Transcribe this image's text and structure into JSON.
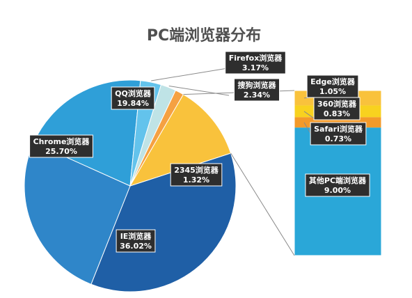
{
  "chart_data": {
    "type": "pie",
    "title": "PC端浏览器分布",
    "slices": [
      {
        "label": "IE浏览器",
        "percent_text": "36.02%",
        "value": 36.02,
        "color": "#1f5fa6"
      },
      {
        "label": "Chrome浏览器",
        "percent_text": "25.70%",
        "value": 25.7,
        "color": "#2f86c9"
      },
      {
        "label": "QQ浏览器",
        "percent_text": "19.84%",
        "value": 19.84,
        "color": "#2f9fd8"
      },
      {
        "label": "Firefox浏览器",
        "percent_text": "3.17%",
        "value": 3.17,
        "color": "#63c3ec"
      },
      {
        "label": "搜狗浏览器",
        "percent_text": "2.34%",
        "value": 2.34,
        "color": "#bfe3e6"
      },
      {
        "label": "2345浏览器",
        "percent_text": "1.32%",
        "value": 1.32,
        "color": "#f5a142"
      },
      {
        "label": "",
        "percent_text": "",
        "value": 11.61,
        "color": "#f9c23c"
      }
    ],
    "breakout": [
      {
        "label": "Edge浏览器",
        "percent_text": "1.05%",
        "value": 1.05,
        "color": "#f9c23c"
      },
      {
        "label": "360浏览器",
        "percent_text": "0.83%",
        "value": 0.83,
        "color": "#f8d21f"
      },
      {
        "label": "Safari浏览器",
        "percent_text": "0.73%",
        "value": 0.73,
        "color": "#f39a2a"
      },
      {
        "label": "其他PC端浏览器",
        "percent_text": "9.00%",
        "value": 9.0,
        "color": "#2aa7d8"
      }
    ]
  }
}
